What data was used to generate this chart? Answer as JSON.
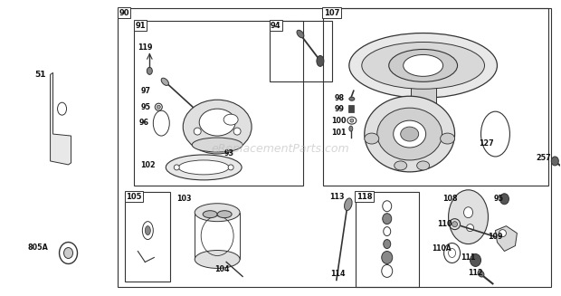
{
  "bg_color": "#ffffff",
  "border_color": "#333333",
  "watermark": "eReplacementParts.com",
  "fig_width": 6.2,
  "fig_height": 3.27,
  "dpi": 100
}
